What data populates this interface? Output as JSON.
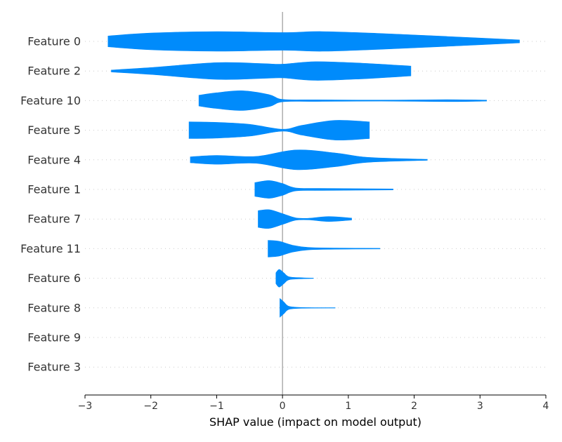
{
  "colors": {
    "violin": "#008bfb",
    "zero_line": "#999999",
    "grid": "#cccccc"
  },
  "chart_data": {
    "type": "violin",
    "xlabel": "SHAP value (impact on model output)",
    "xlim": [
      -3,
      4
    ],
    "xticks": [
      -3,
      -2,
      -1,
      0,
      1,
      2,
      3,
      4
    ],
    "xtick_labels": [
      "−3",
      "−2",
      "−1",
      "0",
      "1",
      "2",
      "3",
      "4"
    ],
    "features": [
      {
        "name": "Feature 0",
        "range": [
          -2.65,
          3.6
        ],
        "density": [
          [
            -2.65,
            0.55
          ],
          [
            -2.0,
            0.85
          ],
          [
            -1.0,
            1.0
          ],
          [
            0.0,
            0.9
          ],
          [
            0.6,
            1.0
          ],
          [
            1.5,
            0.8
          ],
          [
            2.5,
            0.5
          ],
          [
            3.6,
            0.15
          ]
        ]
      },
      {
        "name": "Feature 2",
        "range": [
          -2.6,
          1.95
        ],
        "density": [
          [
            -2.6,
            0.1
          ],
          [
            -2.0,
            0.35
          ],
          [
            -1.0,
            0.85
          ],
          [
            -0.3,
            0.75
          ],
          [
            0.0,
            0.7
          ],
          [
            0.5,
            0.95
          ],
          [
            1.2,
            0.8
          ],
          [
            1.95,
            0.5
          ]
        ]
      },
      {
        "name": "Feature 10",
        "range": [
          -1.27,
          3.1
        ],
        "density": [
          [
            -1.27,
            0.55
          ],
          [
            -1.0,
            0.8
          ],
          [
            -0.6,
            1.0
          ],
          [
            -0.2,
            0.6
          ],
          [
            0.0,
            0.12
          ],
          [
            0.5,
            0.08
          ],
          [
            1.5,
            0.05
          ],
          [
            2.5,
            0.1
          ],
          [
            3.1,
            0.05
          ]
        ]
      },
      {
        "name": "Feature 5",
        "range": [
          -1.42,
          1.32
        ],
        "density": [
          [
            -1.42,
            0.85
          ],
          [
            -1.0,
            0.8
          ],
          [
            -0.5,
            0.6
          ],
          [
            0.0,
            0.1
          ],
          [
            0.3,
            0.5
          ],
          [
            0.8,
            1.0
          ],
          [
            1.32,
            0.85
          ]
        ]
      },
      {
        "name": "Feature 4",
        "range": [
          -1.4,
          2.2
        ],
        "density": [
          [
            -1.4,
            0.3
          ],
          [
            -1.0,
            0.45
          ],
          [
            -0.4,
            0.35
          ],
          [
            0.2,
            1.0
          ],
          [
            0.8,
            0.7
          ],
          [
            1.3,
            0.25
          ],
          [
            2.2,
            0.05
          ]
        ]
      },
      {
        "name": "Feature 1",
        "range": [
          -0.42,
          1.68
        ],
        "density": [
          [
            -0.42,
            0.7
          ],
          [
            -0.2,
            0.9
          ],
          [
            0.0,
            0.6
          ],
          [
            0.2,
            0.15
          ],
          [
            0.6,
            0.1
          ],
          [
            1.68,
            0.05
          ]
        ]
      },
      {
        "name": "Feature 7",
        "range": [
          -0.37,
          1.05
        ],
        "density": [
          [
            -0.37,
            0.85
          ],
          [
            -0.2,
            0.95
          ],
          [
            0.0,
            0.55
          ],
          [
            0.2,
            0.12
          ],
          [
            0.4,
            0.08
          ],
          [
            0.7,
            0.25
          ],
          [
            1.05,
            0.1
          ]
        ]
      },
      {
        "name": "Feature 11",
        "range": [
          -0.22,
          1.48
        ],
        "density": [
          [
            -0.22,
            0.85
          ],
          [
            -0.05,
            0.75
          ],
          [
            0.15,
            0.35
          ],
          [
            0.4,
            0.12
          ],
          [
            0.8,
            0.06
          ],
          [
            1.48,
            0.03
          ]
        ]
      },
      {
        "name": "Feature 6",
        "range": [
          -0.1,
          0.47
        ],
        "density": [
          [
            -0.1,
            0.55
          ],
          [
            -0.05,
            0.9
          ],
          [
            0.02,
            0.55
          ],
          [
            0.1,
            0.15
          ],
          [
            0.3,
            0.05
          ],
          [
            0.47,
            0.02
          ]
        ]
      },
      {
        "name": "Feature 8",
        "range": [
          -0.04,
          0.8
        ],
        "density": [
          [
            -0.04,
            0.95
          ],
          [
            0.02,
            0.6
          ],
          [
            0.1,
            0.15
          ],
          [
            0.3,
            0.04
          ],
          [
            0.8,
            0.02
          ]
        ]
      },
      {
        "name": "Feature 9",
        "range": null,
        "density": []
      },
      {
        "name": "Feature 3",
        "range": null,
        "density": []
      }
    ]
  }
}
